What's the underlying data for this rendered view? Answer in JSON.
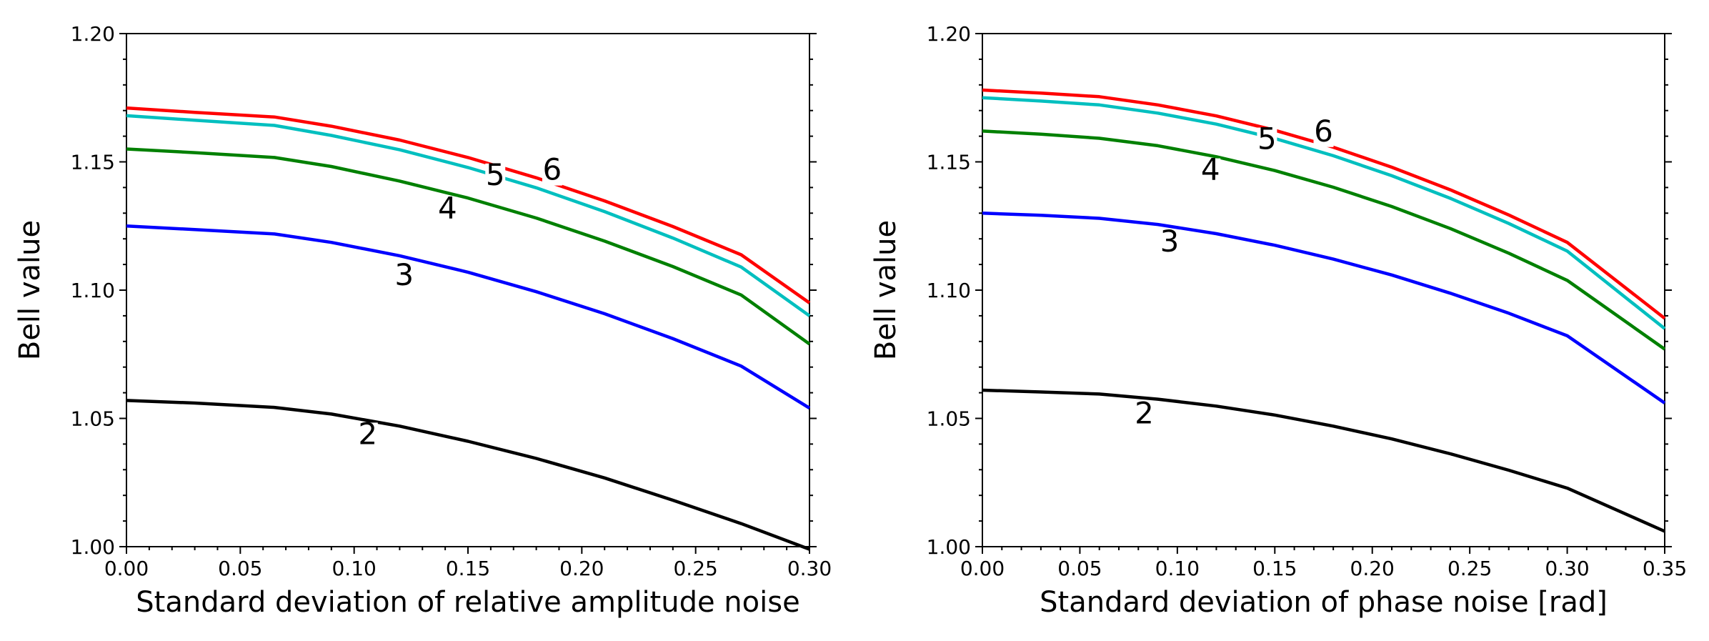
{
  "chart_data": [
    {
      "type": "line",
      "title": "",
      "xlabel": "Standard deviation of relative amplitude noise",
      "ylabel": "Bell value",
      "xlim": [
        0.0,
        0.3
      ],
      "ylim": [
        1.0,
        1.2
      ],
      "xticks": [
        "0.00",
        "0.05",
        "0.10",
        "0.15",
        "0.20",
        "0.25",
        "0.30"
      ],
      "yticks": [
        "1.00",
        "1.05",
        "1.10",
        "1.15",
        "1.20"
      ],
      "x": [
        0.0,
        0.03,
        0.065,
        0.09,
        0.12,
        0.15,
        0.18,
        0.21,
        0.24,
        0.27,
        0.3
      ],
      "series": [
        {
          "name": "2",
          "color": "#000000",
          "values": [
            1.057,
            1.056,
            1.0543,
            1.0517,
            1.047,
            1.0411,
            1.0344,
            1.0268,
            1.0181,
            1.009,
            0.999
          ]
        },
        {
          "name": "3",
          "color": "#0000ff",
          "values": [
            1.125,
            1.1236,
            1.1219,
            1.1186,
            1.1134,
            1.107,
            1.0994,
            1.0908,
            1.0811,
            1.0704,
            1.054
          ]
        },
        {
          "name": "4",
          "color": "#008000",
          "values": [
            1.155,
            1.1536,
            1.1517,
            1.1482,
            1.1425,
            1.1359,
            1.1281,
            1.1191,
            1.1092,
            1.0981,
            1.079
          ]
        },
        {
          "name": "5",
          "color": "#00bfbf",
          "values": [
            1.168,
            1.1662,
            1.1642,
            1.1603,
            1.1547,
            1.1478,
            1.1399,
            1.1306,
            1.1203,
            1.109,
            1.09
          ]
        },
        {
          "name": "6",
          "color": "#ff0000",
          "values": [
            1.171,
            1.1693,
            1.1675,
            1.1639,
            1.1585,
            1.1517,
            1.1438,
            1.1348,
            1.1248,
            1.1138,
            1.095
          ]
        }
      ],
      "labels": [
        {
          "text": "2",
          "x": 0.106,
          "y": 1.04
        },
        {
          "text": "3",
          "x": 0.122,
          "y": 1.102
        },
        {
          "text": "4",
          "x": 0.141,
          "y": 1.128
        },
        {
          "text": "5",
          "x": 0.162,
          "y": 1.141
        },
        {
          "text": "6",
          "x": 0.187,
          "y": 1.143
        }
      ]
    },
    {
      "type": "line",
      "title": "",
      "xlabel": "Standard deviation of phase noise [rad]",
      "ylabel": "Bell value",
      "xlim": [
        0.0,
        0.35
      ],
      "ylim": [
        1.0,
        1.2
      ],
      "xticks": [
        "0.00",
        "0.05",
        "0.10",
        "0.15",
        "0.20",
        "0.25",
        "0.30",
        "0.35"
      ],
      "yticks": [
        "1.00",
        "1.05",
        "1.10",
        "1.15",
        "1.20"
      ],
      "x": [
        0.0,
        0.03,
        0.06,
        0.09,
        0.12,
        0.15,
        0.18,
        0.21,
        0.24,
        0.27,
        0.3,
        0.35
      ],
      "series": [
        {
          "name": "2",
          "color": "#000000",
          "values": [
            1.061,
            1.0603,
            1.0595,
            1.0575,
            1.0548,
            1.0513,
            1.047,
            1.042,
            1.0362,
            1.0298,
            1.0228,
            1.006
          ]
        },
        {
          "name": "3",
          "color": "#0000ff",
          "values": [
            1.13,
            1.1292,
            1.128,
            1.1256,
            1.122,
            1.1175,
            1.1121,
            1.1059,
            1.0988,
            1.091,
            1.0822,
            1.056
          ]
        },
        {
          "name": "4",
          "color": "#008000",
          "values": [
            1.162,
            1.1608,
            1.1592,
            1.1563,
            1.152,
            1.1466,
            1.1401,
            1.1326,
            1.124,
            1.1144,
            1.1038,
            1.077
          ]
        },
        {
          "name": "5",
          "color": "#00bfbf",
          "values": [
            1.175,
            1.1737,
            1.1722,
            1.169,
            1.1647,
            1.1591,
            1.1524,
            1.1446,
            1.1358,
            1.126,
            1.1152,
            1.085
          ]
        },
        {
          "name": "6",
          "color": "#ff0000",
          "values": [
            1.178,
            1.1768,
            1.1754,
            1.1722,
            1.1679,
            1.1623,
            1.1557,
            1.1479,
            1.1391,
            1.1293,
            1.1186,
            1.089
          ]
        }
      ],
      "labels": [
        {
          "text": "2",
          "x": 0.083,
          "y": 1.048
        },
        {
          "text": "3",
          "x": 0.096,
          "y": 1.115
        },
        {
          "text": "4",
          "x": 0.117,
          "y": 1.143
        },
        {
          "text": "5",
          "x": 0.146,
          "y": 1.155
        },
        {
          "text": "6",
          "x": 0.175,
          "y": 1.158
        }
      ]
    }
  ]
}
